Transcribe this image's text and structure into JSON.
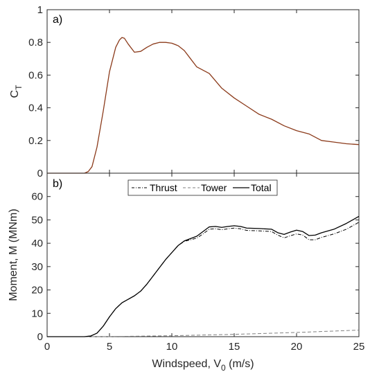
{
  "chart_data": [
    {
      "type": "line",
      "panel_label": "a)",
      "ylabel": "C",
      "ylabel_sub": "T",
      "xlim": [
        0,
        25
      ],
      "ylim": [
        0,
        1
      ],
      "xticks": [
        "0",
        "5",
        "10",
        "15",
        "20",
        "25"
      ],
      "yticks": [
        "0",
        "0.2",
        "0.4",
        "0.6",
        "0.8",
        "1"
      ],
      "grid": false,
      "series": [
        {
          "color": "#8B3A1A",
          "x": [
            0,
            3,
            3.3,
            3.6,
            4.0,
            4.5,
            5.0,
            5.5,
            5.8,
            6.0,
            6.2,
            6.5,
            7.0,
            7.5,
            8.0,
            8.5,
            9.0,
            9.5,
            10.0,
            10.5,
            11.0,
            11.5,
            12.0,
            12.5,
            13.0,
            14.0,
            15.0,
            16.0,
            17.0,
            18.0,
            19.0,
            20.0,
            21.0,
            22.0,
            23.0,
            24.0,
            25.0
          ],
          "y": [
            0,
            0,
            0.01,
            0.04,
            0.16,
            0.38,
            0.62,
            0.77,
            0.815,
            0.83,
            0.825,
            0.79,
            0.74,
            0.745,
            0.77,
            0.79,
            0.8,
            0.8,
            0.795,
            0.78,
            0.75,
            0.7,
            0.65,
            0.63,
            0.61,
            0.52,
            0.46,
            0.41,
            0.36,
            0.33,
            0.29,
            0.26,
            0.24,
            0.2,
            0.19,
            0.18,
            0.175
          ]
        }
      ]
    },
    {
      "type": "line",
      "panel_label": "b)",
      "ylabel": "Moment, M (MNm)",
      "xlabel": "Windspeed, V",
      "xlabel_sub": "0",
      "xlabel_tail": " (m/s)",
      "xlim": [
        0,
        25
      ],
      "ylim": [
        0,
        70
      ],
      "xticks": [
        "0",
        "5",
        "10",
        "15",
        "20",
        "25"
      ],
      "yticks": [
        "0",
        "10",
        "20",
        "30",
        "40",
        "50",
        "60"
      ],
      "grid": false,
      "legend_position": "top-center",
      "series": [
        {
          "name": "Thrust",
          "style": "dashdot",
          "color": "#000000",
          "x": [
            0,
            3,
            3.5,
            4.0,
            4.5,
            5.0,
            5.5,
            6.0,
            6.5,
            7.0,
            7.5,
            8.0,
            8.5,
            9.0,
            9.5,
            10.0,
            10.5,
            11.0,
            11.5,
            12.0,
            12.5,
            13.0,
            13.5,
            14.0,
            14.5,
            15.0,
            15.5,
            16.0,
            17.0,
            18.0,
            18.5,
            19.0,
            19.5,
            20.0,
            20.5,
            21.0,
            21.5,
            22.0,
            23.0,
            24.0,
            25.0
          ],
          "y": [
            0,
            0,
            0.3,
            1.5,
            4.5,
            8.5,
            12,
            14.5,
            16,
            17.5,
            19.5,
            22.5,
            26,
            29.5,
            33,
            36,
            39,
            40.8,
            41.5,
            42.2,
            44,
            46,
            46.2,
            45.8,
            46.2,
            46.5,
            46.2,
            45.5,
            45.3,
            45,
            43.5,
            42.3,
            43.2,
            44,
            43.5,
            41.5,
            41.5,
            42.5,
            44,
            46,
            49
          ]
        },
        {
          "name": "Tower",
          "style": "dashed",
          "color": "#7F7F7F",
          "x": [
            0,
            3,
            5,
            10,
            15,
            20,
            25
          ],
          "y": [
            0,
            0,
            0.05,
            0.4,
            1.0,
            1.8,
            2.8
          ]
        },
        {
          "name": "Total",
          "style": "solid",
          "color": "#000000",
          "x": [
            0,
            3,
            3.5,
            4.0,
            4.5,
            5.0,
            5.5,
            6.0,
            6.5,
            7.0,
            7.5,
            8.0,
            8.5,
            9.0,
            9.5,
            10.0,
            10.5,
            11.0,
            11.5,
            12.0,
            12.5,
            13.0,
            13.5,
            14.0,
            14.5,
            15.0,
            15.5,
            16.0,
            17.0,
            18.0,
            18.5,
            19.0,
            19.5,
            20.0,
            20.5,
            21.0,
            21.5,
            22.0,
            23.0,
            24.0,
            25.0
          ],
          "y": [
            0,
            0,
            0.3,
            1.5,
            4.5,
            8.5,
            12,
            14.5,
            16,
            17.5,
            19.5,
            22.5,
            26,
            29.5,
            33,
            36,
            39,
            41,
            42,
            43,
            45,
            47,
            47.2,
            46.8,
            47.2,
            47.5,
            47.2,
            46.5,
            46.3,
            46,
            44.5,
            43.8,
            44.8,
            45.6,
            45,
            43.3,
            43.5,
            44.5,
            46,
            48.5,
            51.5
          ]
        }
      ]
    }
  ]
}
